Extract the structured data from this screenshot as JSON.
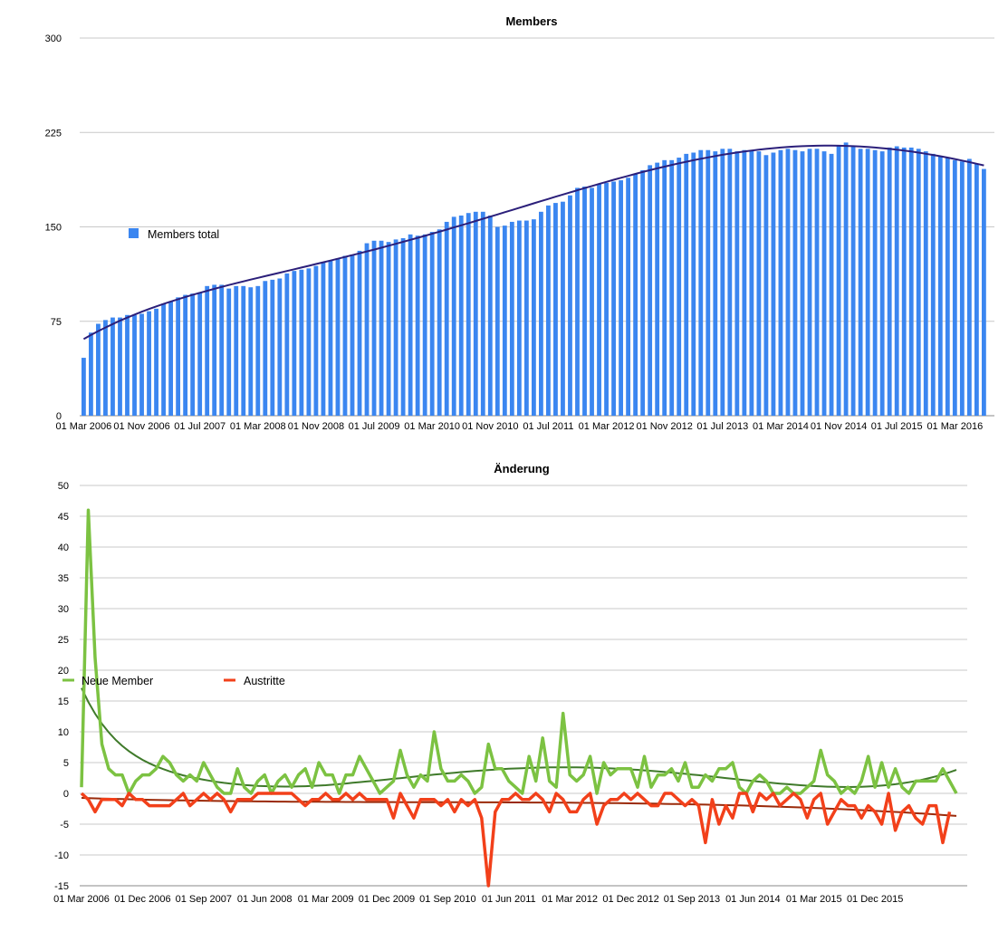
{
  "charts": {
    "members": {
      "title": "Members",
      "legend_label": "Members total",
      "bar_color": "#3b86f0",
      "trend_color": "#2b1f7a"
    },
    "changes": {
      "title": "Änderung",
      "legend_new": "Neue Member",
      "legend_out": "Austritte",
      "new_color": "#7cc242",
      "out_color": "#f2401a",
      "new_trend_color": "#3f7a2a",
      "out_trend_color": "#9a2a0a"
    }
  },
  "chart_data": [
    {
      "type": "bar",
      "title": "Members",
      "ylim": [
        0,
        300
      ],
      "grid": true,
      "legend_placement": "left",
      "yticks": [
        "0",
        "75",
        "150",
        "225",
        "300"
      ],
      "xticks": [
        "01 Mar 2006",
        "01 Nov 2006",
        "01 Jul 2007",
        "01 Mar 2008",
        "01 Nov 2008",
        "01 Jul 2009",
        "01 Mar 2010",
        "01 Nov 2010",
        "01 Jul 2011",
        "01 Mar 2012",
        "01 Nov 2012",
        "01 Jul 2013",
        "01 Mar 2014",
        "01 Nov 2014",
        "01 Jul 2015",
        "01 Mar 2016"
      ],
      "series": [
        {
          "name": "Members total",
          "start": "2006-03",
          "values": [
            46,
            66,
            73,
            76,
            78,
            78,
            80,
            80,
            81,
            83,
            85,
            89,
            91,
            94,
            96,
            97,
            98,
            103,
            104,
            104,
            101,
            103,
            103,
            102,
            103,
            107,
            108,
            109,
            113,
            115,
            116,
            117,
            119,
            122,
            123,
            125,
            127,
            128,
            131,
            137,
            139,
            139,
            138,
            140,
            141,
            144,
            143,
            144,
            146,
            148,
            154,
            158,
            159,
            161,
            162,
            162,
            159,
            150,
            151,
            154,
            155,
            155,
            156,
            162,
            167,
            169,
            170,
            175,
            181,
            182,
            181,
            184,
            185,
            186,
            187,
            189,
            192,
            195,
            199,
            201,
            203,
            203,
            205,
            208,
            209,
            211,
            211,
            210,
            212,
            212,
            210,
            211,
            211,
            210,
            207,
            209,
            211,
            212,
            211,
            210,
            212,
            212,
            210,
            208,
            215,
            217,
            214,
            212,
            212,
            211,
            210,
            213,
            214,
            213,
            213,
            212,
            210,
            208,
            206,
            205,
            203,
            202,
            204,
            200,
            196
          ]
        }
      ]
    },
    {
      "type": "line",
      "title": "Änderung",
      "ylim": [
        -15,
        50
      ],
      "grid": true,
      "legend_placement": "left",
      "yticks": [
        "-15",
        "-10",
        "-5",
        "0",
        "5",
        "10",
        "15",
        "20",
        "25",
        "30",
        "35",
        "40",
        "45",
        "50"
      ],
      "xticks": [
        "01 Mar 2006",
        "01 Dec 2006",
        "01 Sep 2007",
        "01 Jun 2008",
        "01 Mar 2009",
        "01 Dec 2009",
        "01 Sep 2010",
        "01 Jun 2011",
        "01 Mar 2012",
        "01 Dec 2012",
        "01 Sep 2013",
        "01 Jun 2014",
        "01 Mar 2015",
        "01 Dec 2015"
      ],
      "series": [
        {
          "name": "Neue Member",
          "start": "2006-03",
          "values": [
            1,
            46,
            22,
            8,
            4,
            3,
            3,
            0,
            2,
            3,
            3,
            4,
            6,
            5,
            3,
            2,
            3,
            2,
            5,
            3,
            1,
            0,
            0,
            4,
            1,
            0,
            2,
            3,
            0,
            2,
            3,
            1,
            3,
            4,
            1,
            5,
            3,
            3,
            0,
            3,
            3,
            6,
            4,
            2,
            0,
            1,
            2,
            7,
            3,
            1,
            3,
            2,
            10,
            4,
            2,
            2,
            3,
            2,
            0,
            1,
            8,
            4,
            4,
            2,
            1,
            0,
            6,
            2,
            9,
            2,
            1,
            13,
            3,
            2,
            3,
            6,
            0,
            5,
            3,
            4,
            4,
            4,
            1,
            6,
            1,
            3,
            3,
            4,
            2,
            5,
            1,
            1,
            3,
            2,
            4,
            4,
            5,
            1,
            0,
            2,
            3,
            2,
            0,
            0,
            1,
            0,
            0,
            1,
            2,
            7,
            3,
            2,
            0,
            1,
            0,
            2,
            6,
            1,
            5,
            1,
            4,
            1,
            0,
            2,
            2,
            2,
            2,
            4,
            2,
            0
          ]
        },
        {
          "name": "Austritte",
          "start": "2006-03",
          "values": [
            0,
            -1,
            -3,
            -1,
            -1,
            -1,
            -2,
            0,
            -1,
            -1,
            -2,
            -2,
            -2,
            -2,
            -1,
            0,
            -2,
            -1,
            0,
            -1,
            0,
            -1,
            -3,
            -1,
            -1,
            -1,
            0,
            0,
            0,
            0,
            0,
            0,
            -1,
            -2,
            -1,
            -1,
            0,
            -1,
            -1,
            0,
            -1,
            0,
            -1,
            -1,
            -1,
            -1,
            -4,
            0,
            -2,
            -4,
            -1,
            -1,
            -1,
            -2,
            -1,
            -3,
            -1,
            -2,
            -1,
            -4,
            -15,
            -3,
            -1,
            -1,
            0,
            -1,
            -1,
            0,
            -1,
            -3,
            0,
            -1,
            -3,
            -3,
            -1,
            0,
            -5,
            -2,
            -1,
            -1,
            0,
            -1,
            0,
            -1,
            -2,
            -2,
            0,
            0,
            -1,
            -2,
            -1,
            -2,
            -8,
            -1,
            -5,
            -2,
            -4,
            0,
            0,
            -3,
            0,
            -1,
            0,
            -2,
            -1,
            0,
            -1,
            -4,
            -1,
            0,
            -5,
            -3,
            -1,
            -2,
            -2,
            -4,
            -2,
            -3,
            -5,
            0,
            -6,
            -3,
            -2,
            -4,
            -5,
            -2,
            -2,
            -8,
            -3
          ]
        }
      ]
    }
  ]
}
